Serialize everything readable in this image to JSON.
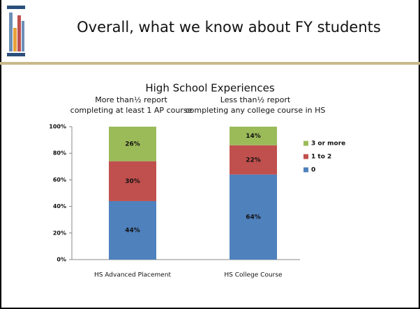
{
  "header": {
    "title": "Overall, what we know about FY students"
  },
  "chart_data": {
    "type": "stacked_bar",
    "title": "High School Experiences",
    "annotations": [
      [
        "More than½ report",
        "completing at least 1 AP course"
      ],
      [
        "Less than½ report",
        "completing any college course in HS"
      ]
    ],
    "categories": [
      "HS Advanced Placement",
      "HS College Course"
    ],
    "series": [
      {
        "name": "0",
        "color": "#4f81bd",
        "values": [
          44,
          64
        ],
        "value_labels": [
          "44%",
          "64%"
        ]
      },
      {
        "name": "1 to 2",
        "color": "#c0504d",
        "values": [
          30,
          22
        ],
        "value_labels": [
          "30%",
          "22%"
        ]
      },
      {
        "name": "3 or more",
        "color": "#9bbb59",
        "values": [
          26,
          14
        ],
        "value_labels": [
          "26%",
          "14%"
        ]
      }
    ],
    "ylim": [
      0,
      100
    ],
    "yticks": [
      {
        "value": 0,
        "label": "0%"
      },
      {
        "value": 20,
        "label": "20%"
      },
      {
        "value": 40,
        "label": "40%"
      },
      {
        "value": 60,
        "label": "60%"
      },
      {
        "value": 80,
        "label": "80%"
      },
      {
        "value": 100,
        "label": "100%"
      }
    ],
    "legend": "right"
  }
}
